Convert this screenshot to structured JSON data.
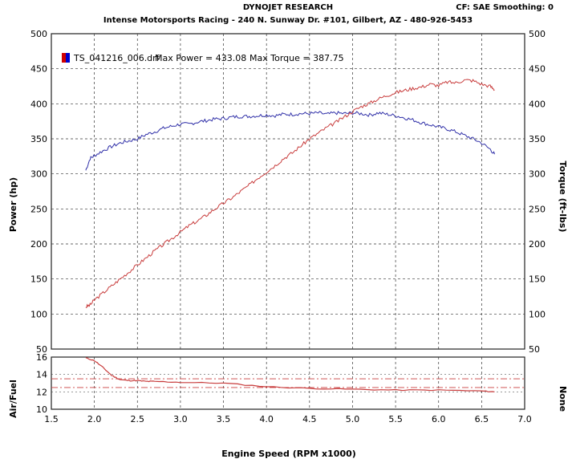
{
  "header": {
    "title": "DYNOJET RESEARCH",
    "subtitle": "Intense Motorsports Racing - 240 N. Sunway Dr. #101, Gilbert, AZ - 480-926-5453",
    "right_info": "CF: SAE  Smoothing: 0"
  },
  "legend": {
    "run_name": "TS_041216_006.drf",
    "max_power_label": "Max Power = 433.08",
    "max_torque_label": "Max Torque = 387.75",
    "swatch_colors": [
      "#d00000",
      "#0000cc"
    ]
  },
  "colors": {
    "power": "#c83c3c",
    "torque": "#3030a8",
    "af": "#c83c3c",
    "grid": "#333333",
    "ref_line": "#c83c3c"
  },
  "chart_data": [
    {
      "type": "line",
      "title": "",
      "xlabel": "",
      "ylabel": "Power (hp)",
      "y2label": "Torque (ft-lbs)",
      "xlim": [
        1.5,
        7.0
      ],
      "ylim": [
        50,
        500
      ],
      "y2lim": [
        50,
        500
      ],
      "x_ticks": [
        "1.5",
        "2.0",
        "2.5",
        "3.0",
        "3.5",
        "4.0",
        "4.5",
        "5.0",
        "5.5",
        "6.0",
        "6.5",
        "7.0"
      ],
      "y_ticks": [
        "50",
        "100",
        "150",
        "200",
        "250",
        "300",
        "350",
        "400",
        "450",
        "500"
      ],
      "grid": true,
      "series": [
        {
          "axis": "left",
          "x": [
            1.9,
            1.95,
            2.0,
            2.1,
            2.2,
            2.3,
            2.4,
            2.5,
            2.6,
            2.7,
            2.8,
            2.9,
            3.0,
            3.1,
            3.2,
            3.3,
            3.4,
            3.5,
            3.6,
            3.7,
            3.8,
            3.9,
            4.0,
            4.1,
            4.2,
            4.3,
            4.4,
            4.5,
            4.6,
            4.7,
            4.8,
            4.9,
            5.0,
            5.1,
            5.2,
            5.3,
            5.4,
            5.5,
            5.6,
            5.7,
            5.8,
            5.9,
            6.0,
            6.1,
            6.2,
            6.3,
            6.4,
            6.5,
            6.6,
            6.65
          ],
          "values": [
            110,
            113,
            120,
            130,
            140,
            150,
            160,
            170,
            180,
            190,
            199,
            208,
            217,
            226,
            233,
            241,
            250,
            258,
            266,
            275,
            284,
            294,
            303,
            312,
            322,
            330,
            340,
            350,
            358,
            366,
            373,
            381,
            389,
            396,
            401,
            407,
            412,
            416,
            419,
            422,
            424,
            428,
            426,
            431,
            430,
            434,
            433,
            428,
            425,
            420
          ]
        },
        {
          "axis": "right",
          "x": [
            1.9,
            1.95,
            2.0,
            2.1,
            2.2,
            2.3,
            2.4,
            2.5,
            2.6,
            2.7,
            2.8,
            2.9,
            3.0,
            3.1,
            3.2,
            3.3,
            3.4,
            3.5,
            3.6,
            3.7,
            3.8,
            3.9,
            4.0,
            4.1,
            4.2,
            4.3,
            4.4,
            4.5,
            4.6,
            4.7,
            4.8,
            4.9,
            5.0,
            5.1,
            5.2,
            5.3,
            5.4,
            5.5,
            5.6,
            5.7,
            5.8,
            5.9,
            6.0,
            6.1,
            6.2,
            6.3,
            6.4,
            6.5,
            6.6,
            6.65
          ],
          "values": [
            305,
            322,
            326,
            333,
            339,
            344,
            347,
            350,
            356,
            360,
            365,
            368,
            371,
            371,
            374,
            376,
            378,
            379,
            381,
            382,
            382,
            383,
            384,
            383,
            385,
            385,
            386,
            386,
            387,
            385,
            387,
            386,
            387,
            386,
            384,
            387,
            385,
            383,
            380,
            377,
            373,
            370,
            367,
            364,
            360,
            355,
            350,
            344,
            335,
            328
          ]
        }
      ]
    },
    {
      "type": "line",
      "title": "",
      "xlabel": "Engine Speed (RPM x1000)",
      "ylabel": "Air/Fuel",
      "y2label": "None",
      "xlim": [
        1.5,
        7.0
      ],
      "ylim": [
        10,
        16
      ],
      "y_ticks": [
        "10",
        "12",
        "14",
        "16"
      ],
      "reference_lines": [
        12.5,
        13.5
      ],
      "grid": true,
      "series": [
        {
          "x": [
            1.9,
            2.0,
            2.1,
            2.2,
            2.3,
            2.4,
            2.5,
            2.6,
            2.7,
            3.0,
            3.5,
            4.0,
            4.5,
            5.0,
            5.5,
            6.0,
            6.5,
            6.65
          ],
          "values": [
            15.9,
            15.6,
            14.8,
            13.9,
            13.4,
            13.3,
            13.3,
            13.2,
            13.2,
            13.1,
            13.0,
            12.6,
            12.4,
            12.3,
            12.2,
            12.2,
            12.1,
            12.0
          ]
        }
      ]
    }
  ]
}
